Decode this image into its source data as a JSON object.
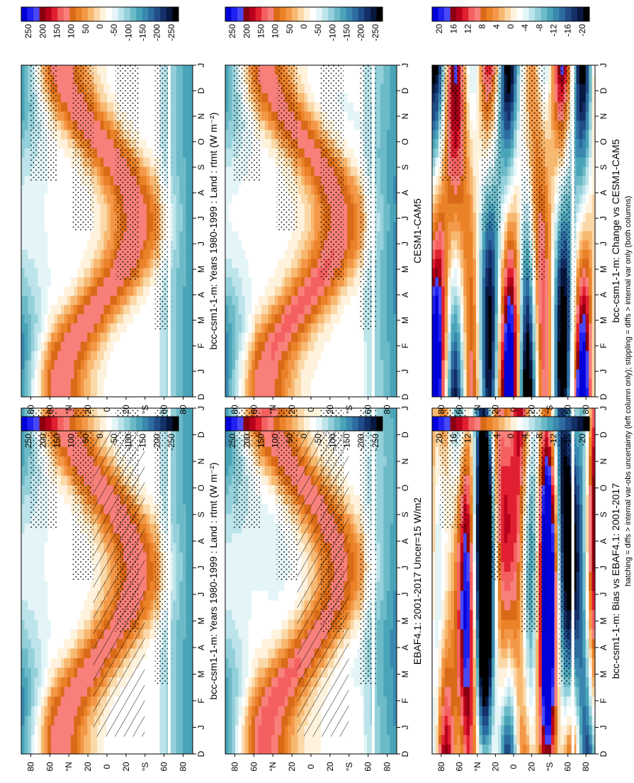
{
  "figure": {
    "footnote": "hatching = diffs > internal var-obs uncertainty (left column only); stippling = diffs > internal var only (both columns)"
  },
  "months": [
    "D",
    "J",
    "F",
    "M",
    "A",
    "M",
    "J",
    "J",
    "A",
    "S",
    "O",
    "N",
    "D",
    "J"
  ],
  "lat_ticks": [
    "80",
    "60",
    "°N",
    "20",
    "0",
    "20",
    "°S",
    "60",
    "80"
  ],
  "colorbars": {
    "main": {
      "labels": [
        "250",
        "200",
        "150",
        "100",
        "50",
        "0",
        "-50",
        "-100",
        "-150",
        "-200",
        "-250"
      ],
      "colors": [
        "#0000d8",
        "#2020f0",
        "#4848f8",
        "#8a0010",
        "#b8001c",
        "#e02030",
        "#f46060",
        "#f8807a",
        "#d96a18",
        "#ea8228",
        "#f39848",
        "#f7b870",
        "#fbd8a8",
        "#fef2dc",
        "#ffffff",
        "#e4f5f8",
        "#bce4ea",
        "#94d0da",
        "#6cbac8",
        "#4aa4b8",
        "#3a88b0",
        "#2c6ca0",
        "#204c88",
        "#143068",
        "#081840",
        "#000000"
      ]
    },
    "diff": {
      "labels": [
        "20",
        "16",
        "12",
        "8",
        "4",
        "0",
        "-4",
        "-8",
        "-12",
        "-16",
        "-20"
      ],
      "colors": [
        "#0000d8",
        "#2020f0",
        "#4848f8",
        "#8a0010",
        "#b8001c",
        "#e02030",
        "#f46060",
        "#f8807a",
        "#d96a18",
        "#ea8228",
        "#f39848",
        "#f7b870",
        "#fbd8a8",
        "#fef2dc",
        "#ffffff",
        "#e4f5f8",
        "#bce4ea",
        "#94d0da",
        "#6cbac8",
        "#4aa4b8",
        "#3a88b0",
        "#2c6ca0",
        "#204c88",
        "#143068",
        "#081840",
        "#000000"
      ]
    }
  },
  "chart_data": [
    {
      "type": "heatmap",
      "title": "bcc-csm1-1-m: Years 1980-1999 : Land : rtmt (W m⁻²)",
      "x": "month (D..J)",
      "y": "latitude 90N..90S",
      "colorbar": "main",
      "hatching": true,
      "field": "bcc"
    },
    {
      "type": "heatmap",
      "title": "bcc-csm1-1-m: Years 1980-1999 : Land : rtmt (W m⁻²)",
      "colorbar": "main",
      "hatching": false,
      "field": "bcc"
    },
    {
      "type": "heatmap",
      "title": "EBAF4.1: 2001-2017 Uncer=15 W/m2",
      "colorbar": "main",
      "hatching": true,
      "field": "obs"
    },
    {
      "type": "heatmap",
      "title": "CESM1-CAM5",
      "colorbar": "main",
      "hatching": false,
      "field": "cesm"
    },
    {
      "type": "heatmap",
      "title": "bcc-csm1-1-m: Bias vs EBAF4.1: 2001-2017",
      "colorbar": "diff",
      "hatching": false,
      "field": "bias"
    },
    {
      "type": "heatmap",
      "title": "bcc-csm1-1-m: Change vs CESM1-CAM5",
      "colorbar": "diff",
      "hatching": false,
      "field": "change"
    }
  ]
}
